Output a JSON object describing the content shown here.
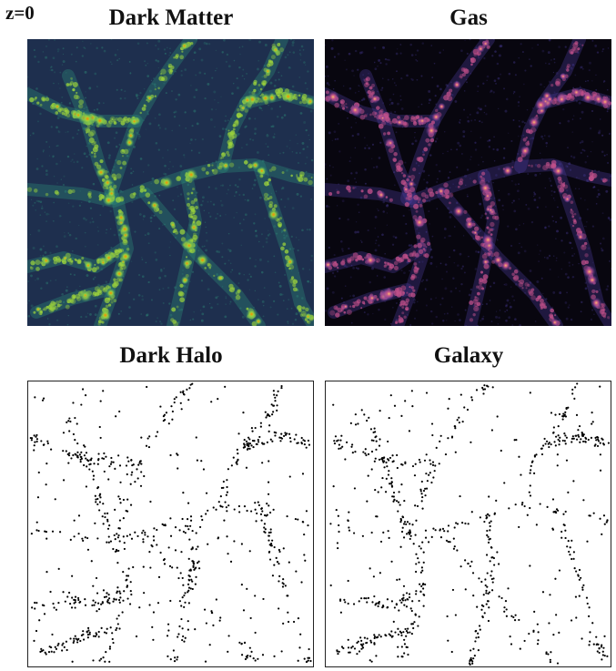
{
  "label": "z=0",
  "panels": {
    "dark_matter": {
      "title": "Dark Matter"
    },
    "gas": {
      "title": "Gas"
    },
    "dark_halo": {
      "title": "Dark Halo"
    },
    "galaxy": {
      "title": "Galaxy"
    }
  },
  "colors": {
    "dm_background": "#1e2f4e",
    "dm_filament": "#2f8f7a",
    "dm_mid": "#9bd23c",
    "dm_peak": "#ff8a00",
    "gas_background": "#08060f",
    "gas_filament": "#4a3d9c",
    "gas_mid": "#c0508a",
    "gas_peak": "#ffb870",
    "points": "#000000"
  }
}
